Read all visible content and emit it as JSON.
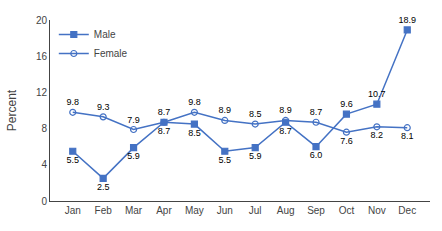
{
  "chart_data": {
    "type": "line",
    "categories": [
      "Jan",
      "Feb",
      "Mar",
      "Apr",
      "May",
      "Jun",
      "Jul",
      "Aug",
      "Sep",
      "Oct",
      "Nov",
      "Dec"
    ],
    "series": [
      {
        "name": "Male",
        "color": "#4472C4",
        "marker": "square",
        "values": [
          5.5,
          2.5,
          5.9,
          8.7,
          8.5,
          5.5,
          5.9,
          8.7,
          6.0,
          9.6,
          10.7,
          18.9
        ],
        "value_labels": [
          "5.5",
          "2.5",
          "5.9",
          "8.7",
          "8.5",
          "5.5",
          "5.9",
          "8.7",
          "6.0",
          "9.6",
          "10.7",
          "18.9"
        ]
      },
      {
        "name": "Female",
        "color": "#4472C4",
        "marker": "circle-open",
        "values": [
          9.8,
          9.3,
          7.9,
          8.7,
          9.8,
          8.9,
          8.5,
          8.9,
          8.7,
          7.6,
          8.2,
          8.1
        ],
        "value_labels": [
          "9.8",
          "9.3",
          "7.9",
          "8.7",
          "9.8",
          "8.9",
          "8.5",
          "8.9",
          "8.7",
          "7.6",
          "8.2",
          "8.1"
        ]
      }
    ],
    "ylabel": "Percent",
    "ylim": [
      0,
      20
    ],
    "yticks": [
      0,
      4,
      8,
      12,
      16,
      20
    ],
    "grid": false,
    "legend": "upper left",
    "data_labels": true
  }
}
